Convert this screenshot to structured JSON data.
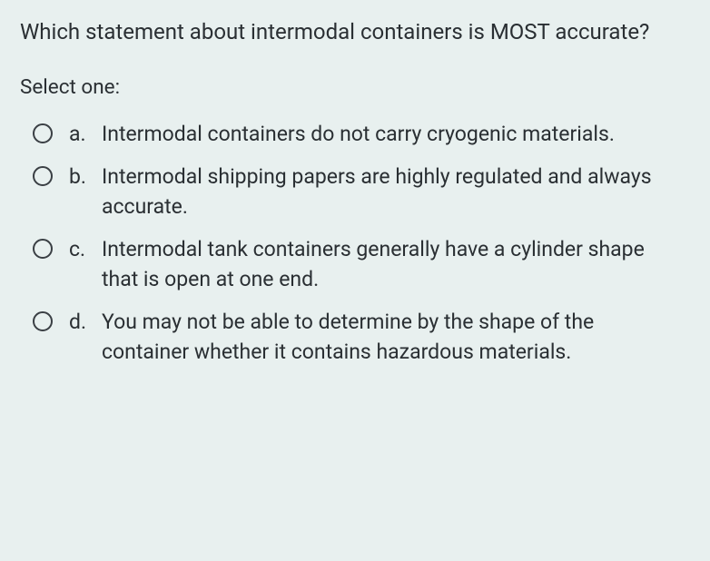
{
  "question": {
    "text": "Which statement about intermodal containers is MOST accurate?",
    "select_label": "Select one:",
    "options": [
      {
        "letter": "a.",
        "text": "Intermodal containers do not carry cryogenic materials."
      },
      {
        "letter": "b.",
        "text": "Intermodal shipping papers are highly regulated and always accurate."
      },
      {
        "letter": "c.",
        "text": "Intermodal tank containers generally have a cylinder shape that is open at one end."
      },
      {
        "letter": "d.",
        "text": "You may not be able to determine by the shape of the container whether it contains hazardous materials."
      }
    ]
  },
  "style": {
    "background_color": "#e8f0ef",
    "text_color": "#2a2f33",
    "radio_border_color": "#3a3f44",
    "question_fontsize": 24,
    "option_fontsize": 23
  }
}
